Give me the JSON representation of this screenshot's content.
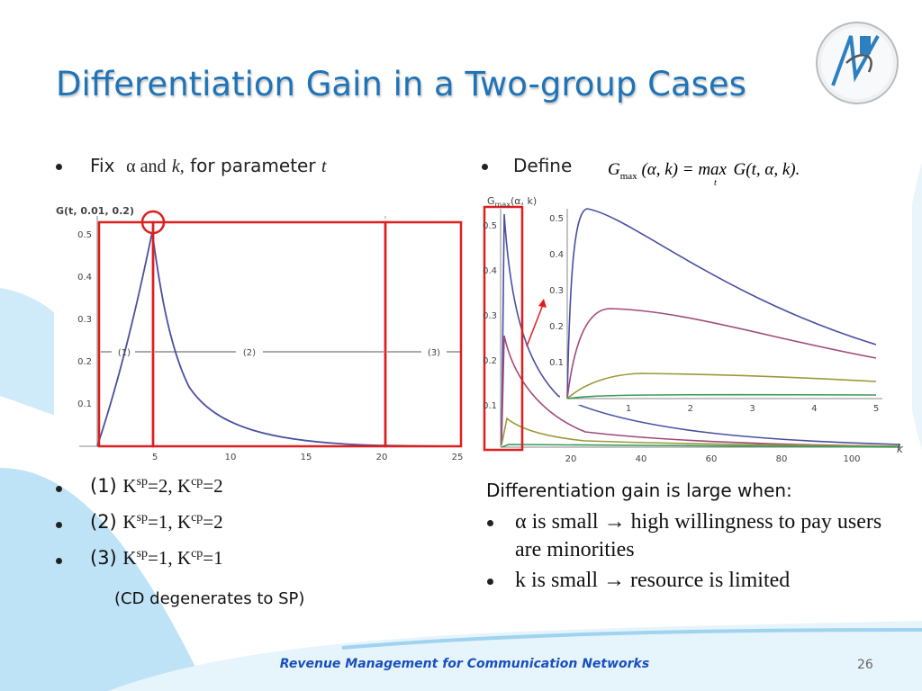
{
  "title": "Differentiation Gain in a Two-group Cases",
  "left_intro": {
    "parts": [
      "Fix",
      "α and",
      "k,",
      "for parameter",
      "t"
    ]
  },
  "chart1": {
    "y_label": "G(t, 0.01, 0.2)",
    "yticks": [
      "0.1",
      "0.2",
      "0.3",
      "0.4",
      "0.5"
    ],
    "xticks": [
      "5",
      "10",
      "15",
      "20",
      "25"
    ],
    "regions": [
      "(1)",
      "(2)",
      "(3)"
    ]
  },
  "cases": [
    [
      "(1) ",
      "K",
      "sp",
      "=2, K",
      "cp",
      "=2"
    ],
    [
      "(2) ",
      "K",
      "sp",
      "=1, K",
      "cp",
      "=2"
    ],
    [
      "(3) ",
      "K",
      "sp",
      "=1, K",
      "cp",
      "=1"
    ]
  ],
  "note": "(CD degenerates to SP)",
  "define": "Define",
  "formula": {
    "g": "G",
    "sub": "max",
    "args": "(α, k) = max",
    "under": "t",
    "rest": "G(t, α, k)."
  },
  "chart2": {
    "y_label": {
      "g": "G",
      "sub": "max",
      "args": "(α, k)"
    },
    "x_label": "k",
    "yticks": [
      "0.1",
      "0.2",
      "0.3",
      "0.4",
      "0.5"
    ],
    "xticks": [
      "20",
      "40",
      "60",
      "80",
      "100"
    ],
    "inset": {
      "yticks": [
        "0.1",
        "0.2",
        "0.3",
        "0.4",
        "0.5"
      ],
      "xticks": [
        "1",
        "2",
        "3",
        "4",
        "5"
      ]
    }
  },
  "right": {
    "heading": "Differentiation gain is large when:",
    "bullets": [
      "α is small  → high willingness to pay users are minorities",
      "k is small → resource is limited"
    ]
  },
  "footer": {
    "text": "Revenue Management for Communication Networks",
    "page": "26"
  }
}
